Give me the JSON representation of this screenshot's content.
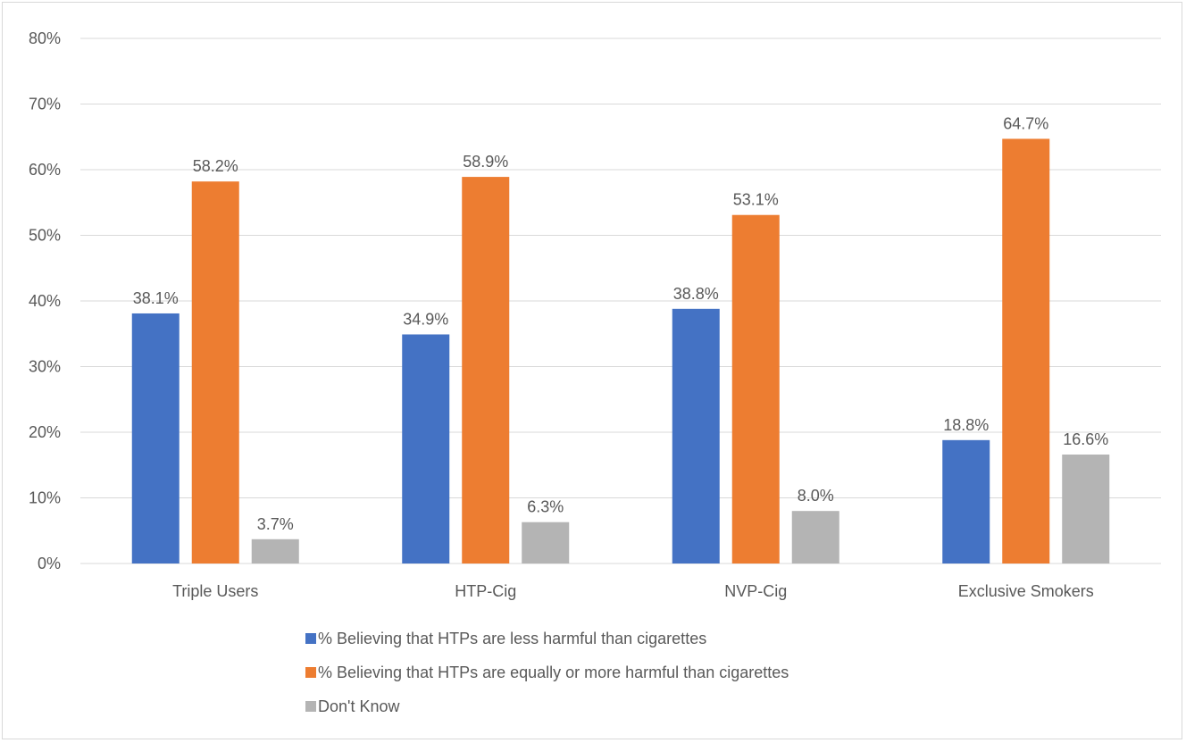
{
  "chart_data": {
    "type": "bar",
    "title": "",
    "xlabel": "",
    "ylabel": "",
    "categories": [
      "Triple Users",
      "HTP-Cig",
      "NVP-Cig",
      "Exclusive Smokers"
    ],
    "series": [
      {
        "name": "% Believing that HTPs are less harmful than cigarettes",
        "color": "#4472c4",
        "values": [
          38.1,
          34.9,
          38.8,
          18.8
        ]
      },
      {
        "name": "% Believing that HTPs are equally or more harmful than cigarettes",
        "color": "#ed7d31",
        "values": [
          58.2,
          58.9,
          53.1,
          64.7
        ]
      },
      {
        "name": "Don't Know",
        "color": "#b4b4b4",
        "values": [
          3.7,
          6.3,
          8.0,
          16.6
        ]
      }
    ],
    "ylim": [
      0,
      80
    ],
    "yticks": [
      0,
      10,
      20,
      30,
      40,
      50,
      60,
      70,
      80
    ],
    "ytick_suffix": "%",
    "value_suffix": "%",
    "value_decimals": 1,
    "grid": true,
    "gridline_color": "#d9d9d9",
    "legend_position": "bottom"
  }
}
